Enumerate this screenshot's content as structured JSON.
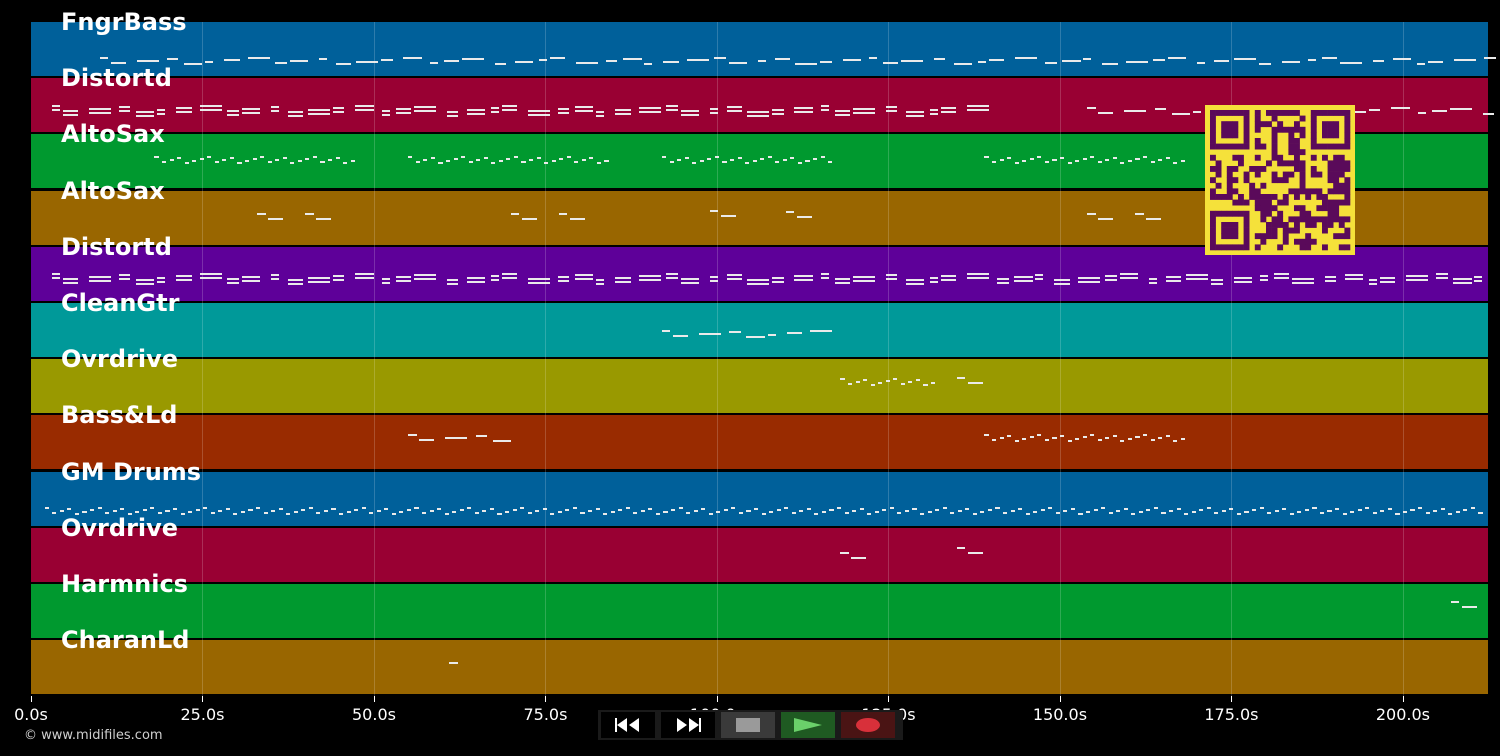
{
  "tracks": [
    {
      "name": "FngrBass",
      "color": "#00609a"
    },
    {
      "name": "Distortd",
      "color": "#990033"
    },
    {
      "name": "AltoSax",
      "color": "#00992f"
    },
    {
      "name": "AltoSax",
      "color": "#996600"
    },
    {
      "name": "Distortd",
      "color": "#5e0099"
    },
    {
      "name": "CleanGtr",
      "color": "#009999"
    },
    {
      "name": "Ovrdrive",
      "color": "#999900"
    },
    {
      "name": "Bass&Ld",
      "color": "#992b00"
    },
    {
      "name": "GM Drums",
      "color": "#00609a"
    },
    {
      "name": "Ovrdrive",
      "color": "#990033"
    },
    {
      "name": "Harmnics",
      "color": "#00992f"
    },
    {
      "name": "CharanLd",
      "color": "#996600"
    }
  ],
  "timeline": {
    "max_seconds": 212.4,
    "ticks": [
      {
        "value": 0,
        "label": "0.0s"
      },
      {
        "value": 25,
        "label": "25.0s"
      },
      {
        "value": 50,
        "label": "50.0s"
      },
      {
        "value": 75,
        "label": "75.0s"
      },
      {
        "value": 100,
        "label": "100.0s"
      },
      {
        "value": 125,
        "label": "125.0s"
      },
      {
        "value": 150,
        "label": "150.0s"
      },
      {
        "value": 175,
        "label": "175.0s"
      },
      {
        "value": 200,
        "label": "200.0s"
      }
    ]
  },
  "copyright": "© www.midifiles.com",
  "transport": {
    "buttons": [
      "rewind-icon",
      "fast-forward-icon",
      "stop-icon",
      "play-icon",
      "record-icon"
    ],
    "colors": {
      "play": "#6ad06a",
      "record": "#d8303a",
      "stop": "#9a9a9a"
    }
  },
  "qr_colors": {
    "fg": "#5a0a5a",
    "bg": "#f5e13a"
  }
}
